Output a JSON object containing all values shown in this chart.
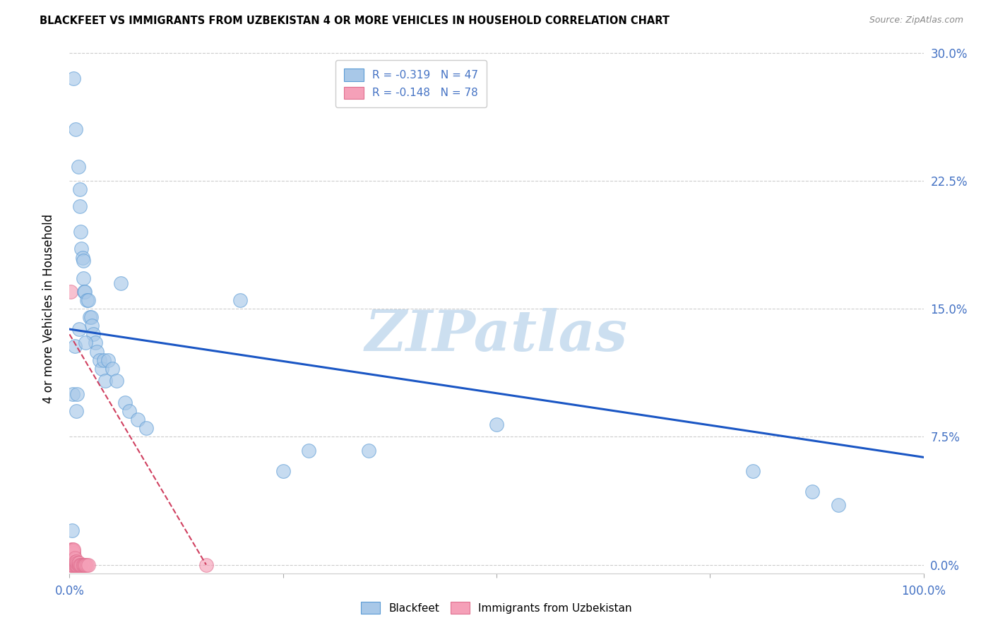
{
  "title": "BLACKFEET VS IMMIGRANTS FROM UZBEKISTAN 4 OR MORE VEHICLES IN HOUSEHOLD CORRELATION CHART",
  "source": "Source: ZipAtlas.com",
  "ylabel": "4 or more Vehicles in Household",
  "xlim": [
    0,
    1.0
  ],
  "ylim": [
    -0.005,
    0.305
  ],
  "legend_label1": "Blackfeet",
  "legend_label2": "Immigrants from Uzbekistan",
  "R1": "-0.319",
  "N1": "47",
  "R2": "-0.148",
  "N2": "78",
  "color_blue": "#a8c8e8",
  "color_pink": "#f5a0b8",
  "color_blue_dark": "#5b9bd5",
  "color_pink_dark": "#e07090",
  "color_trend_blue": "#1a56c4",
  "color_trend_pink": "#d04060",
  "color_axis": "#4472c4",
  "watermark_color": "#ccdff0",
  "blackfeet_x": [
    0.005,
    0.007,
    0.01,
    0.012,
    0.012,
    0.013,
    0.014,
    0.015,
    0.016,
    0.016,
    0.017,
    0.018,
    0.02,
    0.022,
    0.024,
    0.025,
    0.026,
    0.028,
    0.03,
    0.032,
    0.035,
    0.038,
    0.04,
    0.042,
    0.045,
    0.05,
    0.055,
    0.06,
    0.065,
    0.07,
    0.08,
    0.09,
    0.2,
    0.25,
    0.28,
    0.35,
    0.5,
    0.8,
    0.87,
    0.9,
    0.003,
    0.004,
    0.006,
    0.008,
    0.009,
    0.011,
    0.019
  ],
  "blackfeet_y": [
    0.285,
    0.255,
    0.233,
    0.22,
    0.21,
    0.195,
    0.185,
    0.18,
    0.178,
    0.168,
    0.16,
    0.16,
    0.155,
    0.155,
    0.145,
    0.145,
    0.14,
    0.135,
    0.13,
    0.125,
    0.12,
    0.115,
    0.12,
    0.108,
    0.12,
    0.115,
    0.108,
    0.165,
    0.095,
    0.09,
    0.085,
    0.08,
    0.155,
    0.055,
    0.067,
    0.067,
    0.082,
    0.055,
    0.043,
    0.035,
    0.02,
    0.1,
    0.128,
    0.09,
    0.1,
    0.138,
    0.13
  ],
  "uzbek_x": [
    0.001,
    0.001,
    0.001,
    0.001,
    0.001,
    0.001,
    0.001,
    0.001,
    0.001,
    0.001,
    0.002,
    0.002,
    0.002,
    0.002,
    0.002,
    0.002,
    0.002,
    0.002,
    0.002,
    0.002,
    0.003,
    0.003,
    0.003,
    0.003,
    0.003,
    0.003,
    0.003,
    0.003,
    0.003,
    0.003,
    0.004,
    0.004,
    0.004,
    0.004,
    0.004,
    0.004,
    0.004,
    0.004,
    0.004,
    0.004,
    0.005,
    0.005,
    0.005,
    0.005,
    0.005,
    0.005,
    0.005,
    0.005,
    0.005,
    0.005,
    0.006,
    0.006,
    0.006,
    0.006,
    0.006,
    0.007,
    0.007,
    0.007,
    0.008,
    0.008,
    0.008,
    0.009,
    0.009,
    0.01,
    0.01,
    0.011,
    0.011,
    0.012,
    0.013,
    0.014,
    0.015,
    0.016,
    0.017,
    0.018,
    0.019,
    0.02,
    0.022,
    0.16
  ],
  "uzbek_y": [
    0.0,
    0.001,
    0.002,
    0.003,
    0.004,
    0.005,
    0.006,
    0.007,
    0.008,
    0.16,
    0.0,
    0.001,
    0.002,
    0.003,
    0.004,
    0.005,
    0.006,
    0.007,
    0.008,
    0.009,
    0.0,
    0.001,
    0.002,
    0.003,
    0.004,
    0.005,
    0.006,
    0.007,
    0.008,
    0.009,
    0.0,
    0.001,
    0.002,
    0.003,
    0.004,
    0.005,
    0.006,
    0.007,
    0.008,
    0.009,
    0.0,
    0.001,
    0.002,
    0.003,
    0.004,
    0.005,
    0.006,
    0.007,
    0.008,
    0.009,
    0.0,
    0.001,
    0.002,
    0.003,
    0.004,
    0.0,
    0.001,
    0.002,
    0.0,
    0.001,
    0.002,
    0.0,
    0.001,
    0.0,
    0.001,
    0.0,
    0.001,
    0.0,
    0.0,
    0.0,
    0.0,
    0.0,
    0.0,
    0.0,
    0.0,
    0.0,
    0.0,
    0.0
  ],
  "blue_trend_x0": 0.0,
  "blue_trend_y0": 0.138,
  "blue_trend_x1": 1.0,
  "blue_trend_y1": 0.063,
  "pink_trend_x0": 0.0,
  "pink_trend_y0": 0.135,
  "pink_trend_x1": 0.16,
  "pink_trend_y1": 0.0
}
